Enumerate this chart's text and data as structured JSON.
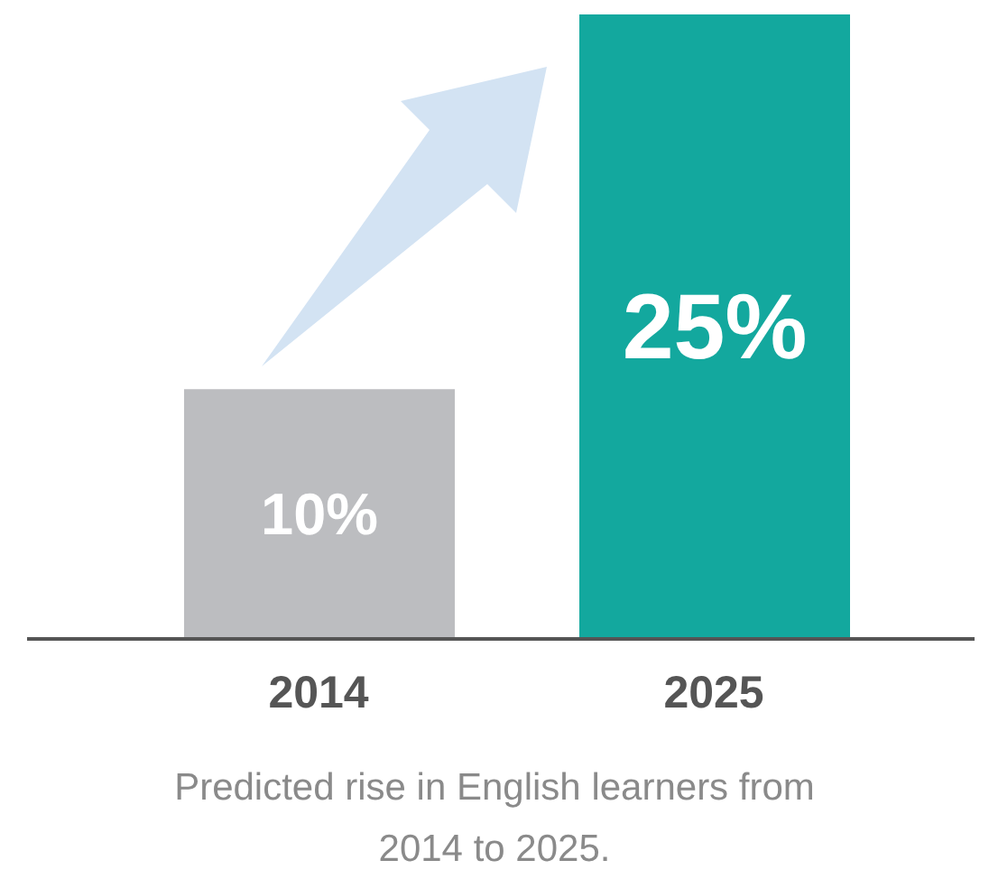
{
  "chart_data": {
    "type": "bar",
    "categories": [
      "2014",
      "2025"
    ],
    "values": [
      10,
      25
    ],
    "colors": [
      "#bcbdc0",
      "#13a89e"
    ],
    "tick_labels": "x",
    "value_labels": [
      "10%",
      "25%"
    ],
    "annotations": [
      "Predicted rise in English learners from 2014 to 2025."
    ]
  }
}
